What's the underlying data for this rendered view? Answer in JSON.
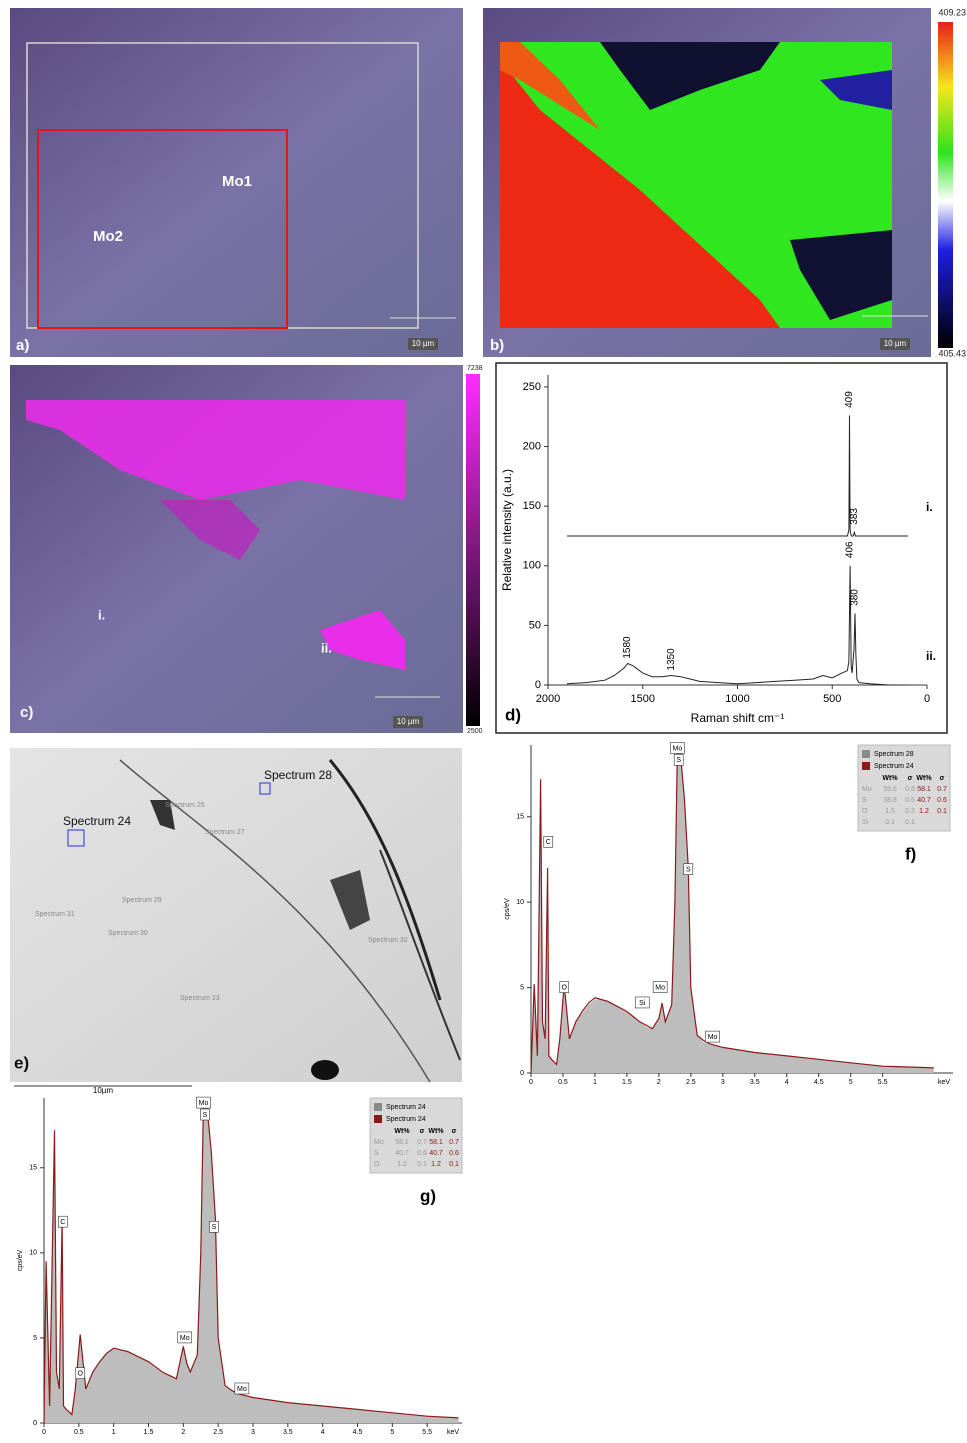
{
  "panels": {
    "a": {
      "label": "a)",
      "regions": [
        "Mo1",
        "Mo2"
      ],
      "scale": "10 µm"
    },
    "b": {
      "label": "b)",
      "scale": "10 µm",
      "colorbar": [
        409.23,
        405.43
      ]
    },
    "c": {
      "label": "c)",
      "scale": "10 µm",
      "colorbar": [
        7238,
        2500
      ],
      "regions": [
        "i.",
        "ii."
      ]
    },
    "e": {
      "label": "e)",
      "scale": "10µm",
      "spectra": [
        "Spectrum 28",
        "Spectrum 24",
        "Spectrum 25",
        "Spectrum 27",
        "Spectrum 29",
        "Spectrum 31",
        "Spectrum 30",
        "Spectrum 32",
        "Spectrum 23"
      ]
    }
  },
  "chart_data": [
    {
      "type": "line",
      "panel_label": "d)",
      "xlabel": "Raman shift cm⁻¹",
      "ylabel": "Relative intensity (a.u.)",
      "xlim": [
        2000,
        0
      ],
      "ylim": [
        0,
        260
      ],
      "xticks": [
        2000,
        1500,
        1000,
        500,
        0
      ],
      "yticks": [
        0,
        50,
        100,
        150,
        200,
        250
      ],
      "series": [
        {
          "name": "i.",
          "color": "#222222",
          "x": [
            1900,
            1000,
            500,
            420,
            412,
            409,
            406,
            400,
            390,
            383,
            378,
            370,
            300,
            100
          ],
          "values": [
            125,
            125,
            125,
            125,
            130,
            226,
            130,
            125,
            125,
            128,
            125,
            125,
            125,
            125
          ]
        },
        {
          "name": "ii.",
          "color": "#222222",
          "x": [
            1900,
            1800,
            1700,
            1650,
            1600,
            1580,
            1550,
            1500,
            1450,
            1400,
            1350,
            1300,
            1250,
            1200,
            1100,
            1000,
            900,
            800,
            700,
            600,
            550,
            500,
            450,
            420,
            412,
            406,
            400,
            395,
            385,
            380,
            375,
            370,
            360,
            300,
            200,
            100
          ],
          "values": [
            1,
            2,
            4,
            8,
            14,
            18,
            16,
            10,
            7,
            7,
            8,
            7,
            5,
            3,
            2,
            1,
            2,
            3,
            4,
            5,
            8,
            6,
            10,
            12,
            20,
            100,
            15,
            10,
            30,
            60,
            25,
            5,
            2,
            1,
            0,
            0
          ]
        }
      ],
      "annotations": [
        {
          "text": "409",
          "x": 409,
          "y": 226
        },
        {
          "text": "383",
          "x": 383,
          "y": 128
        },
        {
          "text": "406",
          "x": 406,
          "y": 100
        },
        {
          "text": "380",
          "x": 380,
          "y": 60
        },
        {
          "text": "1580",
          "x": 1580,
          "y": 18
        },
        {
          "text": "1350",
          "x": 1350,
          "y": 8
        }
      ]
    },
    {
      "type": "area",
      "panel_label": "f)",
      "xlabel": "keV",
      "ylabel": "cps/eV",
      "xlim": [
        0,
        6.6
      ],
      "ylim": [
        0,
        19.2
      ],
      "xticks": [
        0,
        0.5,
        1,
        1.5,
        2,
        2.5,
        3,
        3.5,
        4,
        4.5,
        5,
        5.5
      ],
      "yticks": [
        0,
        5,
        10,
        15
      ],
      "x": [
        0,
        0.05,
        0.1,
        0.15,
        0.18,
        0.22,
        0.26,
        0.28,
        0.32,
        0.4,
        0.45,
        0.52,
        0.6,
        0.7,
        0.8,
        0.9,
        1.0,
        1.1,
        1.2,
        1.3,
        1.4,
        1.5,
        1.6,
        1.7,
        1.8,
        1.9,
        2.0,
        2.05,
        2.1,
        2.2,
        2.25,
        2.29,
        2.33,
        2.4,
        2.46,
        2.5,
        2.6,
        2.7,
        2.8,
        3.0,
        3.5,
        4.0,
        4.5,
        5.0,
        5.5,
        6.3
      ],
      "series": [
        {
          "name": "Spectrum 28",
          "color": "#bdbdbd",
          "values": [
            0,
            5,
            1,
            17,
            3,
            2,
            12,
            1,
            0.8,
            0.5,
            2,
            5,
            2,
            3,
            3.5,
            4,
            4.3,
            4.3,
            4.2,
            4,
            3.8,
            3.6,
            3.3,
            3,
            2.7,
            2.6,
            3.2,
            4,
            3,
            4,
            10,
            19,
            19,
            16,
            12,
            5,
            2.2,
            1.8,
            1.7,
            1.5,
            1.2,
            1,
            0.8,
            0.6,
            0.4,
            0.3
          ]
        },
        {
          "name": "Spectrum 24",
          "color": "#8b1a1a",
          "values": [
            0,
            5.2,
            1,
            17.2,
            3,
            2,
            12,
            1,
            0.8,
            0.5,
            2,
            5.2,
            2,
            3,
            3.6,
            4.1,
            4.4,
            4.3,
            4.2,
            4,
            3.8,
            3.6,
            3.3,
            3,
            2.8,
            2.6,
            3.2,
            4.1,
            3,
            4,
            10,
            19,
            19,
            16,
            12,
            5,
            2.2,
            1.9,
            1.7,
            1.5,
            1.2,
            1,
            0.8,
            0.6,
            0.4,
            0.3
          ]
        }
      ],
      "legend": "upper right",
      "table": {
        "header": [
          "Wt%",
          "σ",
          "Wt%",
          "σ"
        ],
        "rows": [
          [
            "Mo",
            59.6,
            0.6,
            58.1,
            0.7
          ],
          [
            "S",
            38.8,
            0.6,
            40.7,
            0.6
          ],
          [
            "O",
            1.5,
            0.3,
            1.2,
            0.1
          ],
          [
            "Si",
            0.1,
            0.1
          ]
        ]
      },
      "annotations": [
        {
          "text": "C",
          "x": 0.27,
          "y": 13.5
        },
        {
          "text": "O",
          "x": 0.52,
          "y": 5.0
        },
        {
          "text": "Si",
          "x": 1.74,
          "y": 4.1
        },
        {
          "text": "Mo",
          "x": 2.02,
          "y": 5.0
        },
        {
          "text": "Mo",
          "x": 2.29,
          "y": 19
        },
        {
          "text": "S",
          "x": 2.31,
          "y": 18.3
        },
        {
          "text": "S",
          "x": 2.46,
          "y": 11.9
        },
        {
          "text": "Mo",
          "x": 2.84,
          "y": 2.1
        }
      ]
    },
    {
      "type": "area",
      "panel_label": "g)",
      "xlabel": "keV",
      "ylabel": "cps/eV",
      "xlim": [
        0,
        6.0
      ],
      "ylim": [
        0,
        19.1
      ],
      "xticks": [
        0,
        0.5,
        1,
        1.5,
        2,
        2.5,
        3,
        3.5,
        4,
        4.5,
        5,
        5.5
      ],
      "yticks": [
        0,
        5,
        10,
        15
      ],
      "x": [
        0,
        0.03,
        0.08,
        0.15,
        0.18,
        0.22,
        0.26,
        0.28,
        0.32,
        0.4,
        0.45,
        0.52,
        0.6,
        0.7,
        0.8,
        0.9,
        1.0,
        1.1,
        1.2,
        1.3,
        1.4,
        1.5,
        1.6,
        1.7,
        1.8,
        1.9,
        2.0,
        2.05,
        2.1,
        2.2,
        2.25,
        2.29,
        2.33,
        2.4,
        2.46,
        2.5,
        2.6,
        2.7,
        2.8,
        3.0,
        3.5,
        4.0,
        4.5,
        5.0,
        5.5,
        5.95
      ],
      "series": [
        {
          "name": "Spectrum 24",
          "color": "#bdbdbd",
          "values": [
            0,
            9.5,
            1,
            17.2,
            3,
            2,
            12,
            1,
            0.8,
            0.5,
            2,
            5.2,
            2,
            3,
            3.6,
            4.1,
            4.4,
            4.3,
            4.2,
            4,
            3.8,
            3.6,
            3.3,
            3,
            2.8,
            2.6,
            4.5,
            3.5,
            3,
            4,
            10,
            19,
            19,
            16,
            12,
            5,
            2.2,
            1.9,
            1.7,
            1.5,
            1.2,
            1,
            0.8,
            0.6,
            0.4,
            0.3
          ]
        },
        {
          "name": "Spectrum 24",
          "color": "#8b1a1a",
          "values": [
            0,
            9.5,
            1,
            17.2,
            3,
            2,
            12,
            1,
            0.8,
            0.5,
            2,
            5.2,
            2,
            3,
            3.6,
            4.1,
            4.4,
            4.3,
            4.2,
            4,
            3.8,
            3.6,
            3.3,
            3,
            2.8,
            2.6,
            4.5,
            3.5,
            3,
            4,
            10,
            19,
            19,
            16,
            12,
            5,
            2.2,
            1.9,
            1.7,
            1.5,
            1.2,
            1,
            0.8,
            0.6,
            0.4,
            0.3
          ]
        }
      ],
      "legend": "upper right",
      "table": {
        "header": [
          "Wt%",
          "σ",
          "Wt%",
          "σ"
        ],
        "rows": [
          [
            "Mo",
            58.1,
            0.7,
            58.1,
            0.7
          ],
          [
            "S",
            40.7,
            0.6,
            40.7,
            0.6
          ],
          [
            "O",
            1.2,
            0.1,
            1.2,
            0.1
          ]
        ]
      },
      "annotations": [
        {
          "text": "C",
          "x": 0.27,
          "y": 11.8
        },
        {
          "text": "O",
          "x": 0.52,
          "y": 2.9
        },
        {
          "text": "Mo",
          "x": 2.02,
          "y": 5.0
        },
        {
          "text": "Mo",
          "x": 2.29,
          "y": 18.8
        },
        {
          "text": "S",
          "x": 2.31,
          "y": 18.1
        },
        {
          "text": "S",
          "x": 2.44,
          "y": 11.5
        },
        {
          "text": "Mo",
          "x": 2.84,
          "y": 2.0
        }
      ]
    }
  ]
}
